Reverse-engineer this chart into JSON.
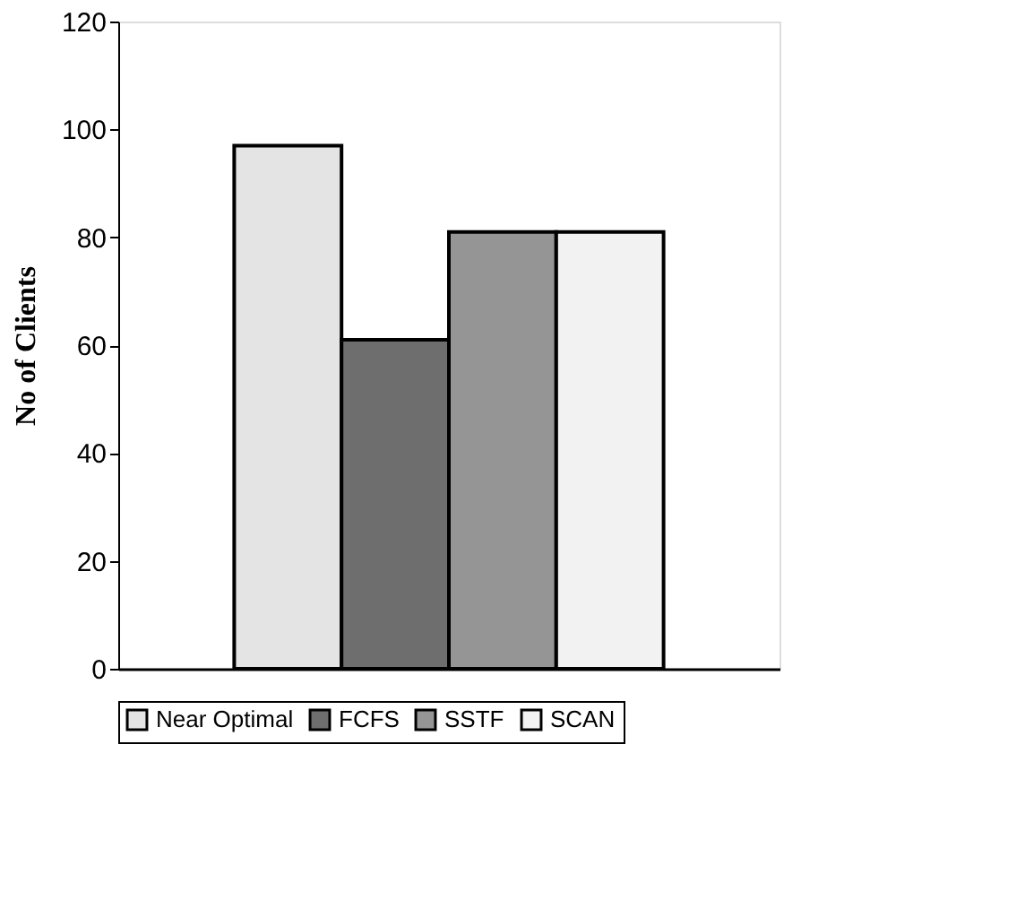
{
  "chart_data": {
    "type": "bar",
    "ylabel": "No of Clients",
    "categories": [
      null
    ],
    "series": [
      {
        "name": "Near Optimal",
        "color": "#e4e4e4",
        "values": [
          97
        ]
      },
      {
        "name": "FCFS",
        "color": "#6e6e6e",
        "values": [
          61
        ]
      },
      {
        "name": "SSTF",
        "color": "#959595",
        "values": [
          81
        ]
      },
      {
        "name": "SCAN",
        "color": "#f2f2f2",
        "values": [
          81
        ]
      }
    ],
    "ylim": [
      0,
      120
    ],
    "yticks": [
      0,
      20,
      40,
      60,
      80,
      100,
      120
    ],
    "grid": false,
    "legend": "bottom",
    "tick_labels": "y"
  }
}
